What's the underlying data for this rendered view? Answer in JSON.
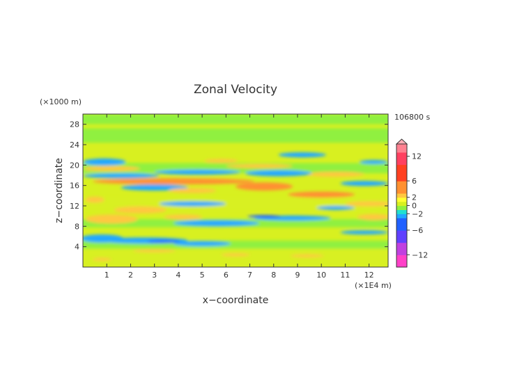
{
  "chart_data": {
    "type": "heatmap",
    "title": "Zonal Velocity",
    "xlabel": "x−coordinate",
    "ylabel": "z−coordinate",
    "x_unit": "(×1E4 m)",
    "y_unit": "(×1000 m)",
    "time_label": "106800 s",
    "xlim": [
      0,
      12.8
    ],
    "ylim": [
      0,
      30
    ],
    "x_ticks": [
      1,
      2,
      3,
      4,
      5,
      6,
      7,
      8,
      9,
      10,
      11,
      12
    ],
    "y_ticks": [
      4,
      8,
      12,
      16,
      20,
      24,
      28
    ],
    "colorbar": {
      "ticks": [
        12,
        6,
        2,
        0,
        -2,
        -6,
        -12
      ],
      "tick_labels": [
        "12",
        "6",
        "2",
        "0",
        "−2",
        "−6",
        "−12"
      ],
      "range": [
        -15,
        15
      ]
    },
    "background_value": 0.5,
    "bands": [
      {
        "x": [
          0,
          12.8
        ],
        "y": [
          0,
          2.2
        ],
        "value": 0.7
      },
      {
        "x": [
          0,
          12.8
        ],
        "y": [
          2.2,
          3.6
        ],
        "value": 0.2
      },
      {
        "x": [
          0,
          12.8
        ],
        "y": [
          3.6,
          5.2
        ],
        "value": -1
      },
      {
        "x": [
          0,
          12.8
        ],
        "y": [
          28,
          30
        ],
        "value": -0.8
      },
      {
        "x": [
          0,
          12.8
        ],
        "y": [
          24.4,
          27.2
        ],
        "value": -0.8
      },
      {
        "x": [
          0,
          12.8
        ],
        "y": [
          11.2,
          13.6
        ],
        "value": 0.4
      },
      {
        "x": [
          0,
          12.8
        ],
        "y": [
          7.8,
          9.4
        ],
        "value": -0.6
      },
      {
        "x": [
          0,
          12.8
        ],
        "y": [
          18.4,
          20.4
        ],
        "value": -0.4
      }
    ],
    "blobs": [
      {
        "x": 0.8,
        "y": 5.6,
        "rx": 0.9,
        "ry": 0.8,
        "value": -2.5
      },
      {
        "x": 2.6,
        "y": 5.2,
        "rx": 1.8,
        "ry": 0.6,
        "value": -2.8
      },
      {
        "x": 3.4,
        "y": 5.0,
        "rx": 0.7,
        "ry": 0.3,
        "value": -4.5
      },
      {
        "x": 5.0,
        "y": 4.6,
        "rx": 1.2,
        "ry": 0.5,
        "value": -2.2
      },
      {
        "x": 1.2,
        "y": 9.4,
        "rx": 1.1,
        "ry": 0.9,
        "value": 2.8
      },
      {
        "x": 0.5,
        "y": 13.2,
        "rx": 0.4,
        "ry": 0.6,
        "value": 2.8
      },
      {
        "x": 2.4,
        "y": 11.2,
        "rx": 1.1,
        "ry": 0.7,
        "value": 2.6
      },
      {
        "x": 4.6,
        "y": 12.4,
        "rx": 1.4,
        "ry": 0.5,
        "value": -2.2
      },
      {
        "x": 4.2,
        "y": 9.8,
        "rx": 0.8,
        "ry": 0.5,
        "value": 2.2
      },
      {
        "x": 5.6,
        "y": 8.6,
        "rx": 1.8,
        "ry": 0.6,
        "value": -2.4
      },
      {
        "x": 8.8,
        "y": 9.6,
        "rx": 1.6,
        "ry": 0.5,
        "value": -2.5
      },
      {
        "x": 7.6,
        "y": 9.9,
        "rx": 0.7,
        "ry": 0.3,
        "value": -4.2
      },
      {
        "x": 12.2,
        "y": 9.8,
        "rx": 0.7,
        "ry": 0.6,
        "value": 2.6
      },
      {
        "x": 3.0,
        "y": 15.6,
        "rx": 1.4,
        "ry": 0.6,
        "value": -2.4
      },
      {
        "x": 4.6,
        "y": 15.0,
        "rx": 1.0,
        "ry": 0.5,
        "value": 2.8
      },
      {
        "x": 3.8,
        "y": 16.8,
        "rx": 3.4,
        "ry": 0.6,
        "value": 3.0
      },
      {
        "x": 1.6,
        "y": 17.9,
        "rx": 1.6,
        "ry": 0.5,
        "value": -2.4
      },
      {
        "x": 4.8,
        "y": 18.6,
        "rx": 1.8,
        "ry": 0.5,
        "value": -2.2
      },
      {
        "x": 0.9,
        "y": 20.6,
        "rx": 0.9,
        "ry": 0.7,
        "value": -3.0
      },
      {
        "x": 1.2,
        "y": 19.3,
        "rx": 1.2,
        "ry": 0.5,
        "value": 2.6
      },
      {
        "x": 7.6,
        "y": 15.8,
        "rx": 1.2,
        "ry": 0.8,
        "value": 3.2
      },
      {
        "x": 10.0,
        "y": 14.2,
        "rx": 1.4,
        "ry": 0.6,
        "value": 3.0
      },
      {
        "x": 12.0,
        "y": 12.4,
        "rx": 1.0,
        "ry": 0.5,
        "value": 2.8
      },
      {
        "x": 10.6,
        "y": 18.2,
        "rx": 1.2,
        "ry": 0.5,
        "value": 2.6
      },
      {
        "x": 8.2,
        "y": 18.4,
        "rx": 1.4,
        "ry": 0.6,
        "value": -2.6
      },
      {
        "x": 11.8,
        "y": 16.4,
        "rx": 1.0,
        "ry": 0.5,
        "value": -2.4
      },
      {
        "x": 7.4,
        "y": 19.8,
        "rx": 1.4,
        "ry": 0.4,
        "value": 2.6
      },
      {
        "x": 5.8,
        "y": 20.8,
        "rx": 0.7,
        "ry": 0.4,
        "value": 2.4
      },
      {
        "x": 9.2,
        "y": 22.0,
        "rx": 1.0,
        "ry": 0.5,
        "value": -2.2
      },
      {
        "x": 12.2,
        "y": 20.6,
        "rx": 0.6,
        "ry": 0.4,
        "value": -2.3
      },
      {
        "x": 3.0,
        "y": 3.2,
        "rx": 0.9,
        "ry": 0.3,
        "value": 2.2
      },
      {
        "x": 0.8,
        "y": 1.5,
        "rx": 0.4,
        "ry": 0.3,
        "value": 2.4
      },
      {
        "x": 6.4,
        "y": 2.4,
        "rx": 0.6,
        "ry": 0.3,
        "value": 2.2
      },
      {
        "x": 9.4,
        "y": 2.2,
        "rx": 0.7,
        "ry": 0.3,
        "value": 2.2
      },
      {
        "x": 11.8,
        "y": 6.8,
        "rx": 1.0,
        "ry": 0.4,
        "value": -2.1
      },
      {
        "x": 10.6,
        "y": 11.6,
        "rx": 0.8,
        "ry": 0.4,
        "value": -2.2
      }
    ]
  }
}
